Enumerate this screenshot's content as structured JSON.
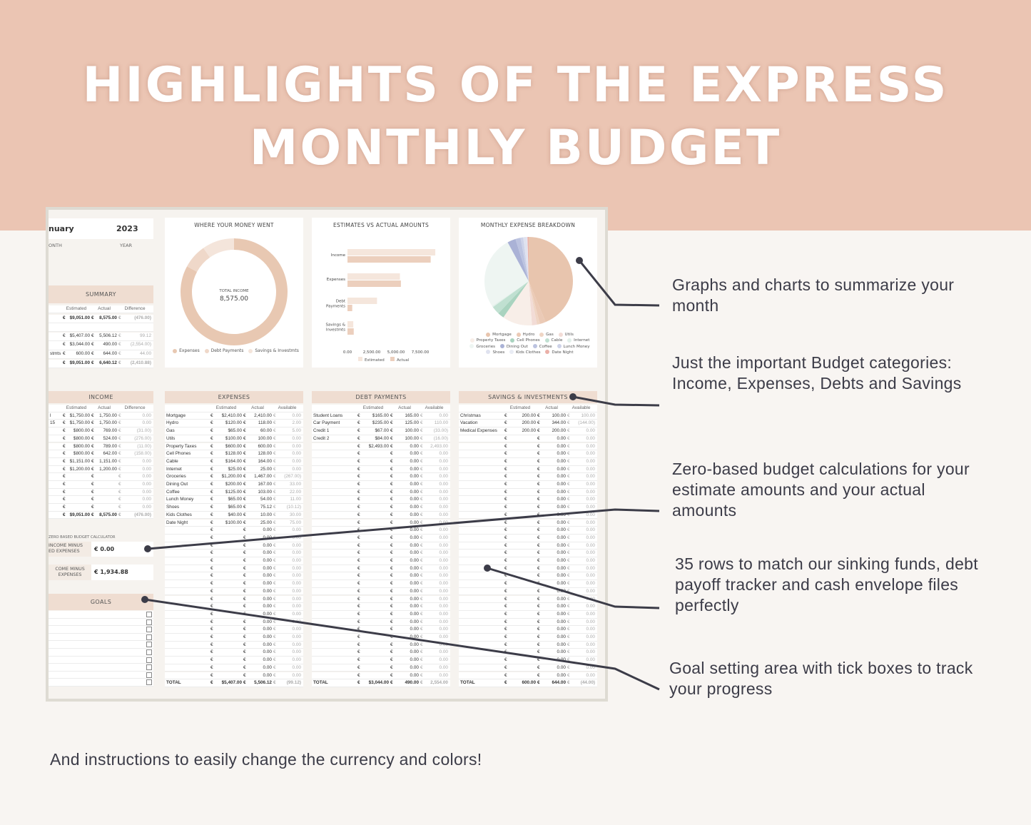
{
  "header": {
    "line1": "HIGHLIGHTS OF THE EXPRESS",
    "line2": "MONTHLY BUDGET",
    "bg_color": "#ebc5b3"
  },
  "sheet": {
    "month": "nuary",
    "year": "2023",
    "month_label": "ONTH",
    "year_label": "YEAR",
    "summary": {
      "title": "SUMMARY",
      "columns": [
        "Estimated",
        "Actual",
        "Difference"
      ],
      "rows": [
        [
          "",
          "$9,051.00",
          "8,575.00",
          "(476.00)"
        ],
        [
          "",
          "",
          "",
          ""
        ],
        [
          "",
          "$5,407.00",
          "5,506.12",
          "99.12"
        ],
        [
          "",
          "$3,044.00",
          "490.00",
          "(2,554.00)"
        ],
        [
          "stmts",
          "600.00",
          "644.00",
          "44.00"
        ],
        [
          "",
          "$9,051.00",
          "6,640.12",
          "(2,410.88)"
        ]
      ]
    },
    "zero_based": {
      "title": "ZERO BASED BUDGET CALCULATOR",
      "label1a": "INCOME MINUS",
      "label1b": "ED EXPENSES",
      "value1": "€ 0.00",
      "label2a": "COME MINUS",
      "label2b": "EXPENSES",
      "value2": "€ 1,934.88"
    },
    "goals": {
      "title": "GOALS",
      "count": 10,
      "checked": [
        false,
        false,
        false,
        false,
        false,
        false,
        false,
        false,
        false,
        false
      ]
    },
    "currency": "€",
    "income": {
      "title": "INCOME",
      "columns": [
        "Estimated",
        "Actual",
        "Difference"
      ],
      "rows": [
        [
          "l",
          "$1,750.00",
          "1,750.00",
          "0.00"
        ],
        [
          "15",
          "$1,750.00",
          "1,750.00",
          "0.00"
        ],
        [
          "",
          "$800.00",
          "769.00",
          "(31.00)"
        ],
        [
          "",
          "$800.00",
          "524.00",
          "(276.00)"
        ],
        [
          "",
          "$800.00",
          "789.00",
          "(11.00)"
        ],
        [
          "",
          "$800.00",
          "642.00",
          "(158.00)"
        ],
        [
          "",
          "$1,151.00",
          "1,151.00",
          "0.00"
        ],
        [
          "",
          "$1,200.00",
          "1,200.00",
          "0.00"
        ],
        [
          "",
          "",
          "",
          "0.00"
        ],
        [
          "",
          "",
          "",
          "0.00"
        ],
        [
          "",
          "",
          "",
          "0.00"
        ],
        [
          "",
          "",
          "",
          "0.00"
        ],
        [
          "",
          "",
          "",
          "0.00"
        ]
      ],
      "total": [
        "",
        "$9,051.00",
        "8,575.00",
        "(476.00)"
      ]
    },
    "expenses": {
      "title": "EXPENSES",
      "columns": [
        "Estimated",
        "Actual",
        "Available"
      ],
      "rows": [
        [
          "Mortgage",
          "$2,410.00",
          "2,410.00",
          "0.00"
        ],
        [
          "Hydro",
          "$120.00",
          "118.00",
          "2.00"
        ],
        [
          "Gas",
          "$65.00",
          "60.00",
          "5.00"
        ],
        [
          "Utils",
          "$100.00",
          "100.00",
          "0.00"
        ],
        [
          "Property Taxes",
          "$600.00",
          "600.00",
          "0.00"
        ],
        [
          "Cell Phones",
          "$128.00",
          "128.00",
          "0.00"
        ],
        [
          "Cable",
          "$164.00",
          "164.00",
          "0.00"
        ],
        [
          "Internet",
          "$25.00",
          "25.00",
          "0.00"
        ],
        [
          "Groceries",
          "$1,200.00",
          "1,467.00",
          "(267.00)"
        ],
        [
          "Dining Out",
          "$200.00",
          "167.00",
          "33.00"
        ],
        [
          "Coffee",
          "$125.00",
          "103.00",
          "22.00"
        ],
        [
          "Lunch Money",
          "$65.00",
          "54.00",
          "11.00"
        ],
        [
          "Shoes",
          "$65.00",
          "75.12",
          "(10.12)"
        ],
        [
          "Kids Clothes",
          "$40.00",
          "10.00",
          "30.00"
        ],
        [
          "Date Night",
          "$100.00",
          "25.00",
          "75.00"
        ],
        [
          "",
          "",
          "0.00",
          "0.00"
        ],
        [
          "",
          "",
          "0.00",
          "0.00"
        ],
        [
          "",
          "",
          "0.00",
          "0.00"
        ],
        [
          "",
          "",
          "0.00",
          "0.00"
        ],
        [
          "",
          "",
          "0.00",
          "0.00"
        ],
        [
          "",
          "",
          "0.00",
          "0.00"
        ],
        [
          "",
          "",
          "0.00",
          "0.00"
        ],
        [
          "",
          "",
          "0.00",
          "0.00"
        ],
        [
          "",
          "",
          "0.00",
          "0.00"
        ],
        [
          "",
          "",
          "0.00",
          "0.00"
        ],
        [
          "",
          "",
          "0.00",
          "0.00"
        ],
        [
          "",
          "",
          "0.00",
          "0.00"
        ],
        [
          "",
          "",
          "0.00",
          "0.00"
        ],
        [
          "",
          "",
          "0.00",
          "0.00"
        ],
        [
          "",
          "",
          "0.00",
          "0.00"
        ],
        [
          "",
          "",
          "0.00",
          "0.00"
        ],
        [
          "",
          "",
          "0.00",
          "0.00"
        ],
        [
          "",
          "",
          "0.00",
          "0.00"
        ],
        [
          "",
          "",
          "0.00",
          "0.00"
        ],
        [
          "",
          "",
          "0.00",
          "0.00"
        ]
      ],
      "total": [
        "TOTAL",
        "$5,407.00",
        "5,506.12",
        "(99.12)"
      ]
    },
    "debt": {
      "title": "DEBT PAYMENTS",
      "columns": [
        "Estimated",
        "Actual",
        "Available"
      ],
      "rows": [
        [
          "Student Loans",
          "$165.00",
          "165.00",
          "0.00"
        ],
        [
          "Car Payment",
          "$235.00",
          "125.00",
          "110.00"
        ],
        [
          "Credit 1",
          "$67.00",
          "100.00",
          "(33.00)"
        ],
        [
          "Credit 2",
          "$84.00",
          "100.00",
          "(16.00)"
        ],
        [
          "",
          "$2,493.00",
          "0.00",
          "2,493.00"
        ],
        [
          "",
          "",
          "0.00",
          "0.00"
        ],
        [
          "",
          "",
          "0.00",
          "0.00"
        ],
        [
          "",
          "",
          "0.00",
          "0.00"
        ],
        [
          "",
          "",
          "0.00",
          "0.00"
        ],
        [
          "",
          "",
          "0.00",
          "0.00"
        ],
        [
          "",
          "",
          "0.00",
          "0.00"
        ],
        [
          "",
          "",
          "0.00",
          "0.00"
        ],
        [
          "",
          "",
          "0.00",
          "0.00"
        ],
        [
          "",
          "",
          "0.00",
          "0.00"
        ],
        [
          "",
          "",
          "0.00",
          "0.00"
        ],
        [
          "",
          "",
          "0.00",
          "0.00"
        ],
        [
          "",
          "",
          "0.00",
          "0.00"
        ],
        [
          "",
          "",
          "0.00",
          "0.00"
        ],
        [
          "",
          "",
          "0.00",
          "0.00"
        ],
        [
          "",
          "",
          "0.00",
          "0.00"
        ],
        [
          "",
          "",
          "0.00",
          "0.00"
        ],
        [
          "",
          "",
          "0.00",
          "0.00"
        ],
        [
          "",
          "",
          "0.00",
          "0.00"
        ],
        [
          "",
          "",
          "0.00",
          "0.00"
        ],
        [
          "",
          "",
          "0.00",
          "0.00"
        ],
        [
          "",
          "",
          "0.00",
          "0.00"
        ],
        [
          "",
          "",
          "0.00",
          "0.00"
        ],
        [
          "",
          "",
          "0.00",
          "0.00"
        ],
        [
          "",
          "",
          "0.00",
          "0.00"
        ],
        [
          "",
          "",
          "0.00",
          "0.00"
        ],
        [
          "",
          "",
          "0.00",
          "0.00"
        ],
        [
          "",
          "",
          "0.00",
          "0.00"
        ],
        [
          "",
          "",
          "0.00",
          "0.00"
        ],
        [
          "",
          "",
          "0.00",
          "0.00"
        ],
        [
          "",
          "",
          "0.00",
          "0.00"
        ]
      ],
      "total": [
        "TOTAL",
        "$3,044.00",
        "490.00",
        "2,554.00"
      ]
    },
    "savings": {
      "title": "SAVINGS & INVESTMENTS",
      "columns": [
        "Estimated",
        "Actual",
        "Available"
      ],
      "rows": [
        [
          "Christmas",
          "200.00",
          "100.00",
          "100.00"
        ],
        [
          "Vacation",
          "200.00",
          "344.00",
          "(144.00)"
        ],
        [
          "Medical Expenses",
          "200.00",
          "200.00",
          "0.00"
        ],
        [
          "",
          "",
          "0.00",
          "0.00"
        ],
        [
          "",
          "",
          "0.00",
          "0.00"
        ],
        [
          "",
          "",
          "0.00",
          "0.00"
        ],
        [
          "",
          "",
          "0.00",
          "0.00"
        ],
        [
          "",
          "",
          "0.00",
          "0.00"
        ],
        [
          "",
          "",
          "0.00",
          "0.00"
        ],
        [
          "",
          "",
          "0.00",
          "0.00"
        ],
        [
          "",
          "",
          "0.00",
          "0.00"
        ],
        [
          "",
          "",
          "0.00",
          "0.00"
        ],
        [
          "",
          "",
          "0.00",
          "0.00"
        ],
        [
          "",
          "",
          "0.00",
          "0.00"
        ],
        [
          "",
          "",
          "0.00",
          "0.00"
        ],
        [
          "",
          "",
          "0.00",
          "0.00"
        ],
        [
          "",
          "",
          "0.00",
          "0.00"
        ],
        [
          "",
          "",
          "0.00",
          "0.00"
        ],
        [
          "",
          "",
          "0.00",
          "0.00"
        ],
        [
          "",
          "",
          "0.00",
          "0.00"
        ],
        [
          "",
          "",
          "0.00",
          "0.00"
        ],
        [
          "",
          "",
          "0.00",
          "0.00"
        ],
        [
          "",
          "",
          "0.00",
          "0.00"
        ],
        [
          "",
          "",
          "0.00",
          "0.00"
        ],
        [
          "",
          "",
          "0.00",
          "0.00"
        ],
        [
          "",
          "",
          "0.00",
          "0.00"
        ],
        [
          "",
          "",
          "0.00",
          "0.00"
        ],
        [
          "",
          "",
          "0.00",
          "0.00"
        ],
        [
          "",
          "",
          "0.00",
          "0.00"
        ],
        [
          "",
          "",
          "0.00",
          "0.00"
        ],
        [
          "",
          "",
          "0.00",
          "0.00"
        ],
        [
          "",
          "",
          "0.00",
          "0.00"
        ],
        [
          "",
          "",
          "0.00",
          "0.00"
        ],
        [
          "",
          "",
          "0.00",
          "0.00"
        ],
        [
          "",
          "",
          "0.00",
          "0.00"
        ]
      ],
      "total": [
        "TOTAL",
        "600.00",
        "644.00",
        "(44.00)"
      ]
    }
  },
  "chart_data": [
    {
      "type": "pie",
      "title": "WHERE YOUR MONEY WENT",
      "donut": true,
      "center_label": "TOTAL INCOME",
      "center_value": "8,575.00",
      "categories": [
        "Expenses",
        "Debt Payments",
        "Savings & Investmts"
      ],
      "values": [
        5506.12,
        490,
        644
      ],
      "colors": [
        "#e8c8b2",
        "#efd8c9",
        "#f4e5db"
      ],
      "legend": "bottom"
    },
    {
      "type": "bar",
      "orientation": "horizontal",
      "title": "ESTIMATES VS ACTUAL AMOUNTS",
      "categories": [
        "Income",
        "Expenses",
        "Debt Payments",
        "Savings & Investmts"
      ],
      "series": [
        {
          "name": "Estimated",
          "values": [
            9051,
            5407,
            3044,
            600
          ],
          "color": "#f5e6dc"
        },
        {
          "name": "Actual",
          "values": [
            8575,
            5506.12,
            490,
            644
          ],
          "color": "#eccfbd"
        }
      ],
      "xticks": [
        "0.00",
        "2,500.00",
        "5,000.00",
        "7,500.00"
      ],
      "xlim": [
        0,
        9500
      ],
      "legend": "bottom"
    },
    {
      "type": "pie",
      "title": "MONTHLY EXPENSE BREAKDOWN",
      "categories": [
        "Mortgage",
        "Hydro",
        "Gas",
        "Utils",
        "Property Taxes",
        "Cell Phones",
        "Cable",
        "Internet",
        "Groceries",
        "Dining Out",
        "Coffee",
        "Lunch Money",
        "Shoes",
        "Kids Clothes",
        "Date Night"
      ],
      "values": [
        2410,
        118,
        60,
        100,
        600,
        128,
        164,
        25,
        1467,
        167,
        103,
        54,
        75.12,
        10,
        25
      ],
      "colors": [
        "#e8c5ae",
        "#ebcab6",
        "#efd5c4",
        "#f2dcd6",
        "#f8eee8",
        "#a9d3bf",
        "#c0e0d1",
        "#e2f0ea",
        "#eef5f2",
        "#aab2d6",
        "#bcc3e0",
        "#cdd2e8",
        "#dfe2ef",
        "#e9ecf4",
        "#eab0a8"
      ],
      "legend": "bottom"
    }
  ],
  "annotations": [
    {
      "text": "Graphs and charts to summarize your month"
    },
    {
      "text": "Just the important Budget categories: Income, Expenses, Debts and Savings"
    },
    {
      "text": "Zero-based budget calculations for your estimate amounts and your actual amounts"
    },
    {
      "text": "35 rows to match our sinking funds, debt payoff tracker and cash envelope files perfectly"
    },
    {
      "text": "Goal setting area with tick boxes to track your progress"
    }
  ],
  "footer": "And instructions to easily change the currency and colors!",
  "accent_line_color": "#3c3c48"
}
